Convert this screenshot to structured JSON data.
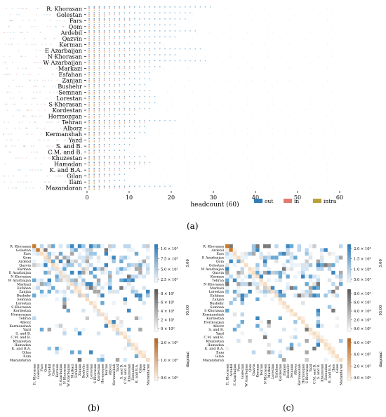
{
  "panel_labels": {
    "a": "(a)",
    "b": "(b)",
    "c": "(c)"
  },
  "colors": {
    "out": "#2f7fb6",
    "in": "#e07b6e",
    "intra": "#b9a03a",
    "diag": "#c97a2a",
    "intra_scale": "#666666"
  },
  "chart_data": [
    {
      "type": "scatter",
      "xlabel": "headcount (60)",
      "xlim": [
        0,
        62
      ],
      "xticks": [
        0,
        10,
        20,
        30,
        40,
        50,
        60
      ],
      "legend_position": "bottom-right",
      "legend": [
        "out",
        "in",
        "intra"
      ],
      "categories": [
        "R. Khorasan",
        "Golestan",
        "Fars",
        "Qom",
        "Ardebil",
        "Qazvin",
        "Kerman",
        "E Azarbaijan",
        "N Khorasan",
        "W Azarbaijan",
        "Markazi",
        "Esfahan",
        "Zanjan",
        "Bushehr",
        "Semnan",
        "Lorestan",
        "S Khorasan",
        "Kordestan",
        "Hormozgan",
        "Tehran",
        "Alborz",
        "Kermanshah",
        "Yazd",
        "S. and B.",
        "C.M. and B.",
        "Khuzestan",
        "Hamadan",
        "K. and B.A.",
        "Gilan",
        "Ilam",
        "Mazandaran"
      ],
      "series": [
        {
          "name": "out",
          "values": [
            30,
            25,
            24,
            22,
            26,
            22,
            18,
            28,
            22,
            29,
            18,
            16,
            15,
            14,
            16,
            17,
            17,
            16,
            12,
            22,
            14,
            14,
            12,
            11,
            10,
            14,
            15,
            12,
            10,
            9,
            20
          ]
        },
        {
          "name": "in",
          "values": [
            10,
            8,
            11,
            9,
            12,
            10,
            8,
            15,
            9,
            16,
            12,
            9,
            8,
            8,
            9,
            10,
            8,
            12,
            7,
            14,
            8,
            8,
            6,
            6,
            5,
            9,
            14,
            8,
            6,
            6,
            9
          ]
        },
        {
          "name": "intra",
          "values": [
            4,
            5,
            6,
            4,
            6,
            5,
            4,
            7,
            5,
            7,
            4,
            5,
            4,
            3,
            4,
            5,
            4,
            6,
            3,
            9,
            4,
            4,
            3,
            3,
            2,
            4,
            5,
            4,
            3,
            2,
            4
          ]
        }
      ]
    },
    {
      "type": "heatmap",
      "rows": [
        "R. Khorasan",
        "Golestan",
        "Fars",
        "Qom",
        "Ardebil",
        "Qazvin",
        "Kerman",
        "E Azarbaijan",
        "N Khorasan",
        "W Azarbaijan",
        "Markazi",
        "Esfahan",
        "Zanjan",
        "Bushehr",
        "Semnan",
        "Lorestan",
        "S Khorasan",
        "Kordestan",
        "Hormozgan",
        "Tehran",
        "Alborz",
        "Kermanshah",
        "Yazd",
        "S. and B.",
        "C.M. and B.",
        "Khuzestan",
        "Hamadan",
        "K. and B.A.",
        "Gilan",
        "Ilam",
        "Mazandaran"
      ],
      "columns": [
        "R. Khorasan",
        "Golestan",
        "Fars",
        "Qom",
        "Ardebil",
        "Qazvin",
        "Kerman",
        "E Azarbaijan",
        "N Khorasan",
        "W Azarbaijan",
        "Markazi",
        "Esfahan",
        "Zanjan",
        "Bushehr",
        "Semnan",
        "Lorestan",
        "S Khorasan",
        "Kordestan",
        "Hormozgan",
        "Tehran",
        "Alborz",
        "Kermanshah",
        "Yazd",
        "S. and B.",
        "C.M. and B.",
        "Khuzestan",
        "Hamadan",
        "K. and B.A.",
        "Gilan",
        "Ilam",
        "Mazandaran"
      ],
      "colorbars": [
        {
          "name": "5.00",
          "ticks": [
            "1.0 × 10³",
            "7.5 × 10²",
            "5.0 × 10²",
            "2.5 × 10²"
          ]
        },
        {
          "name": "95.00",
          "ticks": [
            "8 × 10¹",
            "6 × 10¹",
            "4 × 10¹",
            "2 × 10¹",
            "0 × 10⁰"
          ]
        },
        {
          "name": "diagonal",
          "ticks": [
            "2.0 × 10⁵",
            "1.0 × 10⁵",
            "0.0 × 10⁰"
          ]
        }
      ]
    },
    {
      "type": "heatmap",
      "rows": [
        "R. Khorasan",
        "Ardebil",
        "Fars",
        "E Azarbaijan",
        "Qom",
        "Golestan",
        "W Azarbaijan",
        "Qazvin",
        "Kerman",
        "Tehran",
        "N Khorasan",
        "Markazi",
        "Lorestan",
        "Esfahan",
        "Zanjan",
        "Bushehr",
        "Semnan",
        "S Khorasan",
        "Kermanshah",
        "Kordestan",
        "Hormozgan",
        "Alborz",
        "S. and B.",
        "Yazd",
        "C.M. and B.",
        "Khuzestan",
        "Hamadan",
        "K. and B.A.",
        "Ilam",
        "Gilan",
        "Mazandaran"
      ],
      "columns": [
        "R. Khorasan",
        "Ardebil",
        "E Azarbaijan",
        "Fars",
        "Golestan",
        "W Azarbaijan",
        "Qom",
        "Qazvin",
        "Kerman",
        "Tehran",
        "N Khorasan",
        "Markazi",
        "Lorestan",
        "Esfahan",
        "Kordestan",
        "Zanjan",
        "Bushehr",
        "Semnan",
        "Alborz",
        "Kermanshah",
        "Hormozgan",
        "S Khorasan",
        "Yazd",
        "C.M. and B.",
        "S. and B.",
        "Khuzestan",
        "Hamadan",
        "K. and B.A.",
        "Ilam",
        "Gilan",
        "Mazandaran"
      ],
      "colorbars": [
        {
          "name": "5.00",
          "ticks": [
            "2.0 × 10⁴",
            "1.5 × 10⁴",
            "1.0 × 10⁴",
            "5.0 × 10³"
          ]
        },
        {
          "name": "95.00",
          "ticks": [
            "8.0 × 10²",
            "6.0 × 10²",
            "4.0 × 10²",
            "2.0 × 10²",
            "0.0 × 10⁰"
          ]
        },
        {
          "name": "diagonal",
          "ticks": [
            "6.0 × 10⁵",
            "4.0 × 10⁵",
            "2.0 × 10⁵",
            "0.0 × 10⁰"
          ]
        }
      ]
    }
  ]
}
